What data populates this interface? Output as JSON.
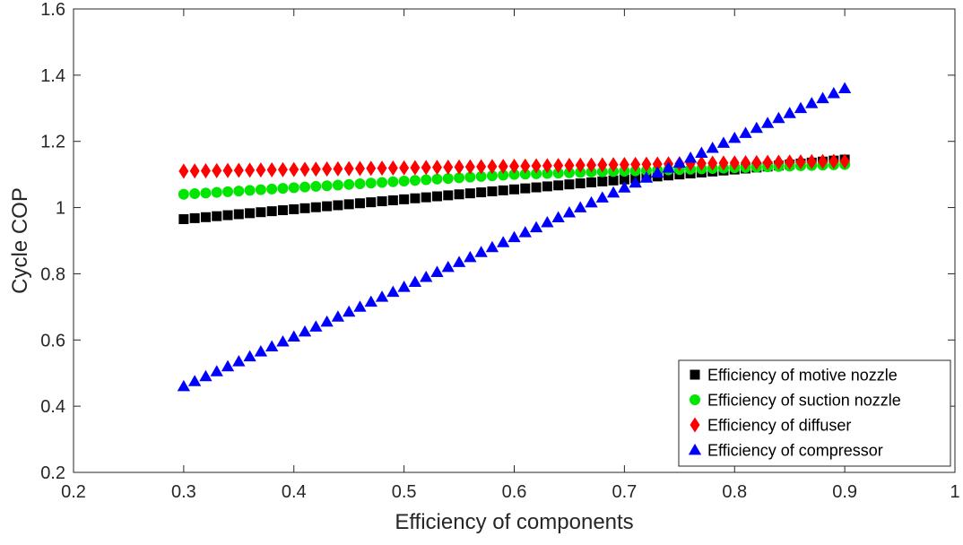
{
  "chart_data": {
    "type": "scatter",
    "title": "",
    "xlabel": "Efficiency of components",
    "ylabel": "Cycle COP",
    "xlim": [
      0.2,
      1.0
    ],
    "ylim": [
      0.2,
      1.6
    ],
    "xticks": [
      "0.2",
      "0.3",
      "0.4",
      "0.5",
      "0.6",
      "0.7",
      "0.8",
      "0.9",
      "1"
    ],
    "yticks": [
      "0.2",
      "0.4",
      "0.6",
      "0.8",
      "1",
      "1.2",
      "1.4",
      "1.6"
    ],
    "grid": false,
    "legend_position": "bottom-right",
    "x": [
      0.3,
      0.31,
      0.32,
      0.33,
      0.34,
      0.35,
      0.36,
      0.37,
      0.38,
      0.39,
      0.4,
      0.41,
      0.42,
      0.43,
      0.44,
      0.45,
      0.46,
      0.47,
      0.48,
      0.49,
      0.5,
      0.51,
      0.52,
      0.53,
      0.54,
      0.55,
      0.56,
      0.57,
      0.58,
      0.59,
      0.6,
      0.61,
      0.62,
      0.63,
      0.64,
      0.65,
      0.66,
      0.67,
      0.68,
      0.69,
      0.7,
      0.71,
      0.72,
      0.73,
      0.74,
      0.75,
      0.76,
      0.77,
      0.78,
      0.79,
      0.8,
      0.81,
      0.82,
      0.83,
      0.84,
      0.85,
      0.86,
      0.87,
      0.88,
      0.89,
      0.9
    ],
    "series": [
      {
        "name": "Efficiency of motive nozzle",
        "marker": "square",
        "color": "#000000",
        "values": [
          0.965,
          0.968,
          0.971,
          0.974,
          0.977,
          0.98,
          0.983,
          0.986,
          0.989,
          0.992,
          0.995,
          0.998,
          1.001,
          1.004,
          1.007,
          1.01,
          1.013,
          1.016,
          1.019,
          1.022,
          1.025,
          1.028,
          1.031,
          1.034,
          1.037,
          1.04,
          1.043,
          1.046,
          1.049,
          1.052,
          1.055,
          1.058,
          1.061,
          1.064,
          1.067,
          1.07,
          1.073,
          1.076,
          1.079,
          1.082,
          1.085,
          1.088,
          1.091,
          1.094,
          1.097,
          1.1,
          1.103,
          1.106,
          1.109,
          1.112,
          1.115,
          1.118,
          1.121,
          1.124,
          1.127,
          1.13,
          1.133,
          1.136,
          1.139,
          1.142,
          1.145
        ]
      },
      {
        "name": "Efficiency of suction nozzle",
        "marker": "circle",
        "color": "#00e600",
        "values": [
          1.04,
          1.042,
          1.044,
          1.046,
          1.048,
          1.05,
          1.052,
          1.054,
          1.056,
          1.058,
          1.06,
          1.062,
          1.064,
          1.066,
          1.068,
          1.07,
          1.072,
          1.074,
          1.076,
          1.078,
          1.08,
          1.082,
          1.084,
          1.086,
          1.088,
          1.09,
          1.092,
          1.094,
          1.096,
          1.098,
          1.1,
          1.101,
          1.102,
          1.103,
          1.104,
          1.105,
          1.106,
          1.107,
          1.108,
          1.109,
          1.11,
          1.111,
          1.112,
          1.113,
          1.114,
          1.115,
          1.116,
          1.117,
          1.118,
          1.119,
          1.12,
          1.121,
          1.122,
          1.123,
          1.124,
          1.125,
          1.126,
          1.127,
          1.128,
          1.129,
          1.13
        ]
      },
      {
        "name": "Efficiency of diffuser",
        "marker": "diamond",
        "color": "#ff0000",
        "values": [
          1.11,
          1.1105,
          1.111,
          1.1115,
          1.112,
          1.1125,
          1.113,
          1.1135,
          1.114,
          1.1145,
          1.115,
          1.1155,
          1.116,
          1.1165,
          1.117,
          1.1175,
          1.118,
          1.1185,
          1.119,
          1.1195,
          1.12,
          1.1205,
          1.121,
          1.1215,
          1.122,
          1.1225,
          1.123,
          1.1235,
          1.124,
          1.1245,
          1.125,
          1.1255,
          1.126,
          1.1265,
          1.127,
          1.1275,
          1.128,
          1.1285,
          1.129,
          1.1295,
          1.13,
          1.1305,
          1.131,
          1.1315,
          1.132,
          1.1325,
          1.133,
          1.1335,
          1.134,
          1.1345,
          1.135,
          1.1355,
          1.136,
          1.1365,
          1.137,
          1.1375,
          1.138,
          1.1385,
          1.139,
          1.1395,
          1.14
        ]
      },
      {
        "name": "Efficiency of compressor",
        "marker": "triangle",
        "color": "#0000ff",
        "values": [
          0.46,
          0.475,
          0.49,
          0.505,
          0.52,
          0.535,
          0.55,
          0.565,
          0.58,
          0.595,
          0.61,
          0.625,
          0.64,
          0.655,
          0.67,
          0.685,
          0.7,
          0.715,
          0.73,
          0.745,
          0.76,
          0.775,
          0.79,
          0.805,
          0.82,
          0.835,
          0.85,
          0.865,
          0.88,
          0.895,
          0.91,
          0.925,
          0.94,
          0.955,
          0.97,
          0.985,
          1.0,
          1.015,
          1.03,
          1.045,
          1.06,
          1.075,
          1.09,
          1.105,
          1.12,
          1.135,
          1.15,
          1.165,
          1.18,
          1.195,
          1.21,
          1.225,
          1.24,
          1.255,
          1.27,
          1.285,
          1.3,
          1.315,
          1.33,
          1.345,
          1.36
        ]
      }
    ]
  }
}
